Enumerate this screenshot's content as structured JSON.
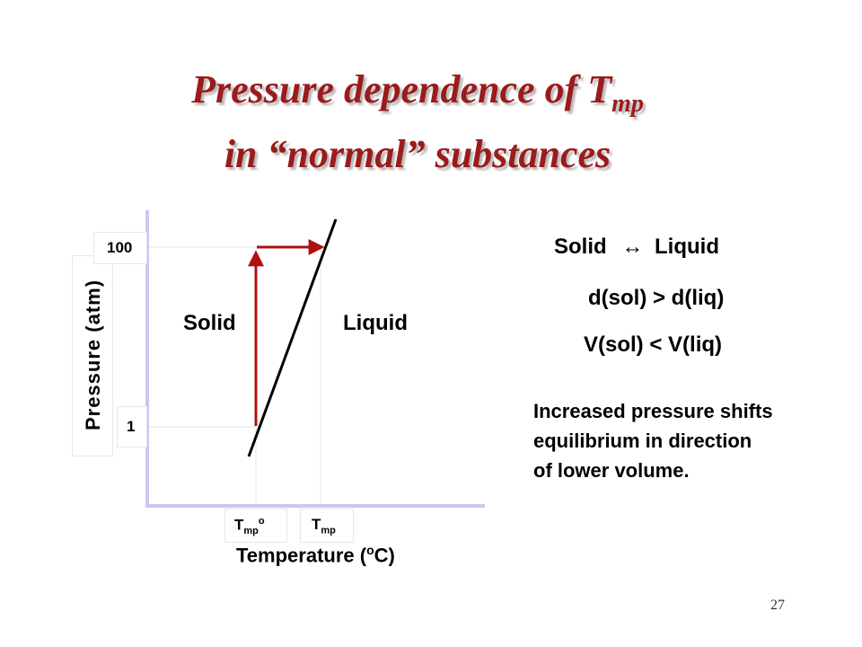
{
  "title": {
    "line1_main": "Pressure dependence of T",
    "line1_sub": "mp",
    "line2": "in “normal” substances"
  },
  "chart": {
    "y_axis_label": "Pressure (atm)",
    "x_axis_label_main": "Temperature (",
    "x_axis_label_sup": "o",
    "x_axis_label_end": "C)",
    "y_ticks": [
      "100",
      "1"
    ],
    "x_tick_1": {
      "main": "T",
      "sub": "mp",
      "sup": "o"
    },
    "x_tick_2": {
      "main": "T",
      "sub": "mp"
    },
    "region_left": "Solid",
    "region_right": "Liquid",
    "colors": {
      "arrow": "#b01010",
      "axis": "#c8c8f0",
      "line": "#000000",
      "title": "#9b1b1b"
    }
  },
  "notes": {
    "equilibrium_left": "Solid",
    "equilibrium_symbol": "↔",
    "equilibrium_right": "Liquid",
    "density": "d(sol) > d(liq)",
    "volume": "V(sol) < V(liq)",
    "explanation": [
      "Increased pressure shifts",
      "equilibrium in direction",
      "of lower volume."
    ]
  },
  "slide_number": "27"
}
